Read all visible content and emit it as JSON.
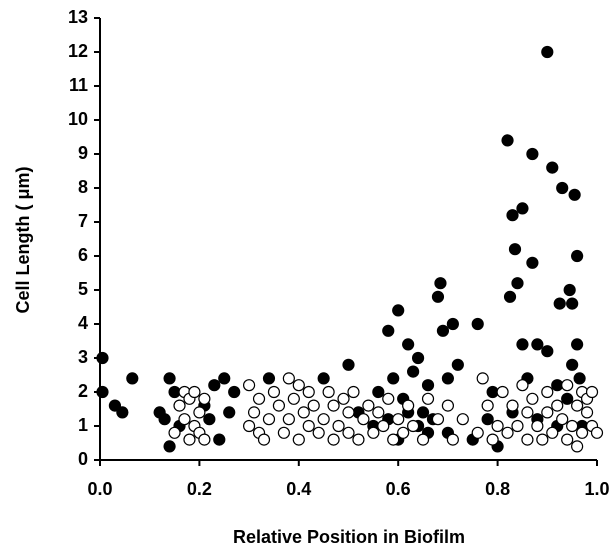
{
  "chart_data": {
    "type": "scatter",
    "xlabel": "Relative Position in Biofilm",
    "ylabel": "Cell Length (  μm)",
    "xlim": [
      0,
      1
    ],
    "ylim": [
      0,
      13
    ],
    "xticks": [
      {
        "value": 0,
        "label": "0.0"
      },
      0.2,
      0.4,
      0.6,
      0.8,
      {
        "value": 1,
        "label": "1.0"
      }
    ],
    "yticks": [
      0,
      1,
      2,
      3,
      4,
      5,
      6,
      7,
      8,
      9,
      10,
      11,
      12,
      13
    ],
    "marker_edge_color": "#000000",
    "series": [
      {
        "color": "#000000",
        "x": [
          0.005,
          0.005,
          0.03,
          0.045,
          0.065,
          0.12,
          0.13,
          0.14,
          0.15,
          0.14,
          0.16,
          0.21,
          0.22,
          0.23,
          0.24,
          0.25,
          0.26,
          0.27,
          0.34,
          0.45,
          0.5,
          0.52,
          0.55,
          0.56,
          0.58,
          0.59,
          0.6,
          0.61,
          0.62,
          0.63,
          0.64,
          0.65,
          0.66,
          0.67,
          0.68,
          0.685,
          0.69,
          0.7,
          0.71,
          0.72,
          0.75,
          0.76,
          0.78,
          0.79,
          0.8,
          0.82,
          0.825,
          0.83,
          0.835,
          0.84,
          0.85,
          0.85,
          0.86,
          0.87,
          0.87,
          0.88,
          0.9,
          0.9,
          0.91,
          0.92,
          0.925,
          0.93,
          0.94,
          0.945,
          0.95,
          0.955,
          0.96,
          0.96,
          0.965,
          0.95,
          0.97,
          0.6,
          0.64,
          0.66,
          0.62,
          0.7,
          0.58,
          0.83,
          0.92,
          0.88
        ],
        "values": [
          3.0,
          2.0,
          1.6,
          1.4,
          2.4,
          1.4,
          1.2,
          2.4,
          2.0,
          0.4,
          1.0,
          1.6,
          1.2,
          2.2,
          0.6,
          2.4,
          1.4,
          2.0,
          2.4,
          2.4,
          2.8,
          1.4,
          1.0,
          2.0,
          3.8,
          2.4,
          4.4,
          1.8,
          3.4,
          2.6,
          3.0,
          1.4,
          2.2,
          1.2,
          4.8,
          5.2,
          3.8,
          2.4,
          4.0,
          2.8,
          0.6,
          4.0,
          1.2,
          2.0,
          0.4,
          9.4,
          4.8,
          7.2,
          6.2,
          5.2,
          7.4,
          3.4,
          2.4,
          5.8,
          9.0,
          3.4,
          12.0,
          3.2,
          8.6,
          2.2,
          4.6,
          8.0,
          1.8,
          5.0,
          4.6,
          7.8,
          6.0,
          3.4,
          2.4,
          2.8,
          1.0,
          0.6,
          1.0,
          0.8,
          1.4,
          0.8,
          1.2,
          1.4,
          1.0,
          1.2
        ]
      },
      {
        "color": "#ffffff",
        "x": [
          0.15,
          0.16,
          0.17,
          0.17,
          0.18,
          0.18,
          0.19,
          0.19,
          0.2,
          0.2,
          0.21,
          0.21,
          0.3,
          0.3,
          0.31,
          0.32,
          0.32,
          0.33,
          0.34,
          0.35,
          0.36,
          0.37,
          0.38,
          0.38,
          0.39,
          0.4,
          0.4,
          0.41,
          0.42,
          0.42,
          0.43,
          0.44,
          0.45,
          0.46,
          0.47,
          0.47,
          0.48,
          0.49,
          0.5,
          0.5,
          0.51,
          0.52,
          0.53,
          0.54,
          0.55,
          0.56,
          0.57,
          0.58,
          0.59,
          0.6,
          0.61,
          0.62,
          0.63,
          0.65,
          0.66,
          0.68,
          0.7,
          0.71,
          0.73,
          0.76,
          0.77,
          0.78,
          0.79,
          0.8,
          0.81,
          0.82,
          0.83,
          0.84,
          0.85,
          0.86,
          0.86,
          0.87,
          0.88,
          0.89,
          0.9,
          0.9,
          0.91,
          0.92,
          0.93,
          0.94,
          0.94,
          0.95,
          0.96,
          0.96,
          0.97,
          0.97,
          0.98,
          0.98,
          0.99,
          0.99,
          1.0
        ],
        "values": [
          0.8,
          1.6,
          2.0,
          1.2,
          0.6,
          1.8,
          1.0,
          2.0,
          1.4,
          0.8,
          1.8,
          0.6,
          1.0,
          2.2,
          1.4,
          0.8,
          1.8,
          0.6,
          1.2,
          2.0,
          1.6,
          0.8,
          2.4,
          1.2,
          1.8,
          0.6,
          2.2,
          1.4,
          1.0,
          2.0,
          1.6,
          0.8,
          1.2,
          2.0,
          0.6,
          1.6,
          1.0,
          1.8,
          0.8,
          1.4,
          2.0,
          0.6,
          1.2,
          1.6,
          0.8,
          1.4,
          1.0,
          1.8,
          0.6,
          1.2,
          0.8,
          1.6,
          1.0,
          0.6,
          1.8,
          1.2,
          1.6,
          0.6,
          1.2,
          0.8,
          2.4,
          1.6,
          0.6,
          1.0,
          2.0,
          0.8,
          1.6,
          1.0,
          2.2,
          0.6,
          1.4,
          1.8,
          1.0,
          0.6,
          1.4,
          2.0,
          0.8,
          1.6,
          1.2,
          0.6,
          2.2,
          1.0,
          1.6,
          0.4,
          2.0,
          0.8,
          1.4,
          1.8,
          1.0,
          2.0,
          0.8
        ]
      }
    ]
  }
}
